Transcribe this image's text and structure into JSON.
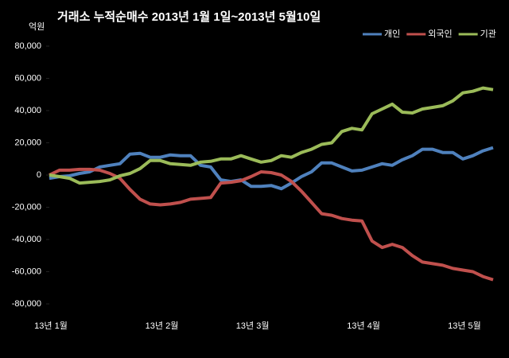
{
  "chart_data": {
    "type": "line",
    "title": "거래소  누적순매수 2013년 1월 1일~2013년 5월10일",
    "unit": "억원",
    "categories": [
      "13년 1월",
      null,
      null,
      null,
      null,
      null,
      null,
      null,
      null,
      null,
      null,
      "13년 2월",
      null,
      null,
      null,
      null,
      null,
      null,
      null,
      null,
      "13년 3월",
      null,
      null,
      null,
      null,
      null,
      null,
      null,
      null,
      null,
      null,
      "13년 4월",
      null,
      null,
      null,
      null,
      null,
      null,
      null,
      null,
      null,
      "13년 5월",
      null,
      null,
      null
    ],
    "series": [
      {
        "name": "개인",
        "color": "#4f81bd",
        "values": [
          -2000,
          -1000,
          -500,
          1000,
          2000,
          5000,
          6000,
          7000,
          13000,
          13500,
          11000,
          11000,
          12500,
          12000,
          12000,
          6000,
          5000,
          -3000,
          -4000,
          -3000,
          -7000,
          -7000,
          -6500,
          -8500,
          -5000,
          -1000,
          2000,
          7500,
          7500,
          5000,
          2500,
          3000,
          5000,
          7000,
          6000,
          9500,
          12000,
          16000,
          16000,
          14000,
          14000,
          10000,
          12000,
          15000,
          17000
        ]
      },
      {
        "name": "외국인",
        "color": "#c0504d",
        "values": [
          0,
          3000,
          3000,
          3500,
          3500,
          3000,
          1000,
          -2000,
          -9000,
          -15000,
          -18000,
          -18500,
          -18000,
          -17000,
          -15000,
          -14500,
          -14000,
          -5000,
          -4500,
          -3500,
          -1000,
          2000,
          1500,
          0,
          -4000,
          -10000,
          -17000,
          -24000,
          -25000,
          -27000,
          -28000,
          -28500,
          -41000,
          -45000,
          -43000,
          -45000,
          -50000,
          -54000,
          -55000,
          -56000,
          -58000,
          -59000,
          -60000,
          -63000,
          -65000
        ]
      },
      {
        "name": "기관",
        "color": "#9bbb59",
        "values": [
          0,
          -1000,
          -2000,
          -5000,
          -4500,
          -4000,
          -3000,
          -500,
          1000,
          4000,
          9000,
          9000,
          7000,
          6500,
          6000,
          8000,
          8500,
          10000,
          10000,
          12000,
          10000,
          8000,
          9000,
          12000,
          11000,
          14000,
          16000,
          19000,
          20000,
          27000,
          29000,
          28000,
          38000,
          41000,
          44000,
          39000,
          38500,
          41000,
          42000,
          43000,
          46000,
          51000,
          52000,
          54000,
          53000
        ]
      }
    ],
    "ylim": [
      -80000,
      80000
    ],
    "yticks": [
      {
        "value": -80000,
        "label": "-80,000"
      },
      {
        "value": -60000,
        "label": "-60,000"
      },
      {
        "value": -40000,
        "label": "-40,000"
      },
      {
        "value": -20000,
        "label": "-20,000"
      },
      0,
      {
        "value": 20000,
        "label": "20,000"
      },
      {
        "value": 40000,
        "label": "40,000"
      },
      {
        "value": 60000,
        "label": "60,000"
      },
      {
        "value": 80000,
        "label": "80,000"
      }
    ],
    "grid": false,
    "legend": "top-right"
  }
}
